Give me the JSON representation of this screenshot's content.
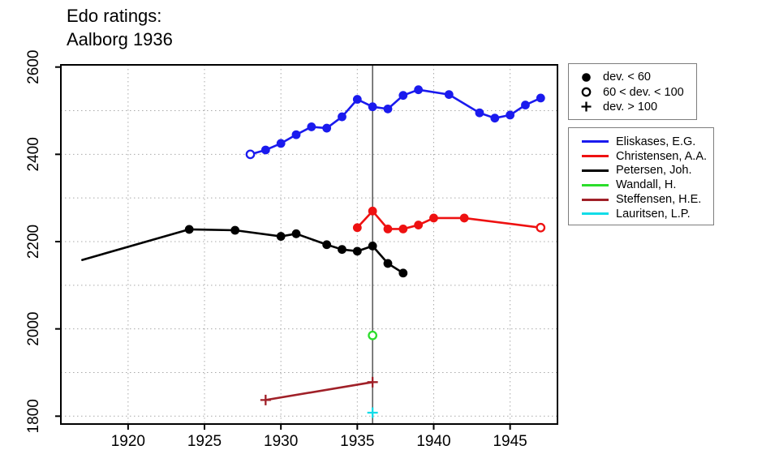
{
  "title": {
    "line1": "Edo ratings:",
    "line2": "Aalborg 1936"
  },
  "marker_legend": [
    {
      "symbol": "filled-circle",
      "label": "dev. < 60"
    },
    {
      "symbol": "open-circle",
      "label": "60 < dev. < 100"
    },
    {
      "symbol": "plus",
      "label": "dev. > 100"
    }
  ],
  "chart_data": {
    "type": "line",
    "title": "Edo ratings: Aalborg 1936",
    "xlabel": "",
    "ylabel": "",
    "xlim": [
      1915.6,
      1948.1
    ],
    "ylim": [
      1782,
      2605
    ],
    "x_ticks": [
      1920,
      1925,
      1930,
      1935,
      1940,
      1945
    ],
    "y_ticks": [
      1800,
      2000,
      2200,
      2400,
      2600
    ],
    "grid": {
      "style": "dotted",
      "color": "#a9a9a9",
      "x_lines": [
        1920,
        1925,
        1930,
        1935,
        1940,
        1945
      ],
      "y_lines": [
        1800,
        1900,
        2000,
        2100,
        2200,
        2300,
        2400,
        2500
      ]
    },
    "event_line_year": 1936,
    "event_line_color": "#3a3a3a",
    "marker_meanings": {
      "filled": "dev. < 60",
      "open": "60 < dev. < 100",
      "plus": "dev. > 100"
    },
    "series": [
      {
        "name": "Eliskases, E.G.",
        "color": "#1a1aee",
        "points": [
          {
            "year": 1928,
            "rating": 2400,
            "marker": "open"
          },
          {
            "year": 1929,
            "rating": 2410,
            "marker": "filled"
          },
          {
            "year": 1930,
            "rating": 2425,
            "marker": "filled"
          },
          {
            "year": 1931,
            "rating": 2445,
            "marker": "filled"
          },
          {
            "year": 1932,
            "rating": 2463,
            "marker": "filled"
          },
          {
            "year": 1933,
            "rating": 2460,
            "marker": "filled"
          },
          {
            "year": 1934,
            "rating": 2486,
            "marker": "filled"
          },
          {
            "year": 1935,
            "rating": 2526,
            "marker": "filled"
          },
          {
            "year": 1936,
            "rating": 2509,
            "marker": "filled"
          },
          {
            "year": 1937,
            "rating": 2504,
            "marker": "filled"
          },
          {
            "year": 1938,
            "rating": 2535,
            "marker": "filled"
          },
          {
            "year": 1939,
            "rating": 2548,
            "marker": "filled"
          },
          {
            "year": 1941,
            "rating": 2537,
            "marker": "filled"
          },
          {
            "year": 1943,
            "rating": 2495,
            "marker": "filled"
          },
          {
            "year": 1944,
            "rating": 2483,
            "marker": "filled"
          },
          {
            "year": 1945,
            "rating": 2490,
            "marker": "filled"
          },
          {
            "year": 1946,
            "rating": 2513,
            "marker": "filled"
          },
          {
            "year": 1947,
            "rating": 2529,
            "marker": "filled"
          }
        ]
      },
      {
        "name": "Christensen, A.A.",
        "color": "#ee1111",
        "points": [
          {
            "year": 1935,
            "rating": 2232,
            "marker": "filled"
          },
          {
            "year": 1936,
            "rating": 2270,
            "marker": "filled"
          },
          {
            "year": 1937,
            "rating": 2229,
            "marker": "filled"
          },
          {
            "year": 1938,
            "rating": 2229,
            "marker": "filled"
          },
          {
            "year": 1939,
            "rating": 2238,
            "marker": "filled"
          },
          {
            "year": 1940,
            "rating": 2254,
            "marker": "filled"
          },
          {
            "year": 1942,
            "rating": 2254,
            "marker": "filled"
          },
          {
            "year": 1947,
            "rating": 2232,
            "marker": "open"
          }
        ]
      },
      {
        "name": "Petersen, Joh.",
        "color": "#000000",
        "points": [
          {
            "year": 1917,
            "rating": 2158,
            "marker": "none"
          },
          {
            "year": 1924,
            "rating": 2228,
            "marker": "filled"
          },
          {
            "year": 1927,
            "rating": 2226,
            "marker": "filled"
          },
          {
            "year": 1930,
            "rating": 2212,
            "marker": "filled"
          },
          {
            "year": 1931,
            "rating": 2218,
            "marker": "filled"
          },
          {
            "year": 1933,
            "rating": 2193,
            "marker": "filled"
          },
          {
            "year": 1934,
            "rating": 2182,
            "marker": "filled"
          },
          {
            "year": 1935,
            "rating": 2178,
            "marker": "filled"
          },
          {
            "year": 1936,
            "rating": 2190,
            "marker": "filled"
          },
          {
            "year": 1937,
            "rating": 2150,
            "marker": "filled"
          },
          {
            "year": 1938,
            "rating": 2128,
            "marker": "filled"
          }
        ]
      },
      {
        "name": "Wandall, H.",
        "color": "#2bdd2b",
        "points": [
          {
            "year": 1936,
            "rating": 1985,
            "marker": "open"
          }
        ]
      },
      {
        "name": "Steffensen, H.E.",
        "color": "#a02028",
        "points": [
          {
            "year": 1929,
            "rating": 1837,
            "marker": "plus"
          },
          {
            "year": 1936,
            "rating": 1878,
            "marker": "plus"
          }
        ]
      },
      {
        "name": "Lauritsen, L.P.",
        "color": "#12dce8",
        "points": [
          {
            "year": 1936,
            "rating": 1808,
            "marker": "plus"
          }
        ]
      }
    ]
  }
}
